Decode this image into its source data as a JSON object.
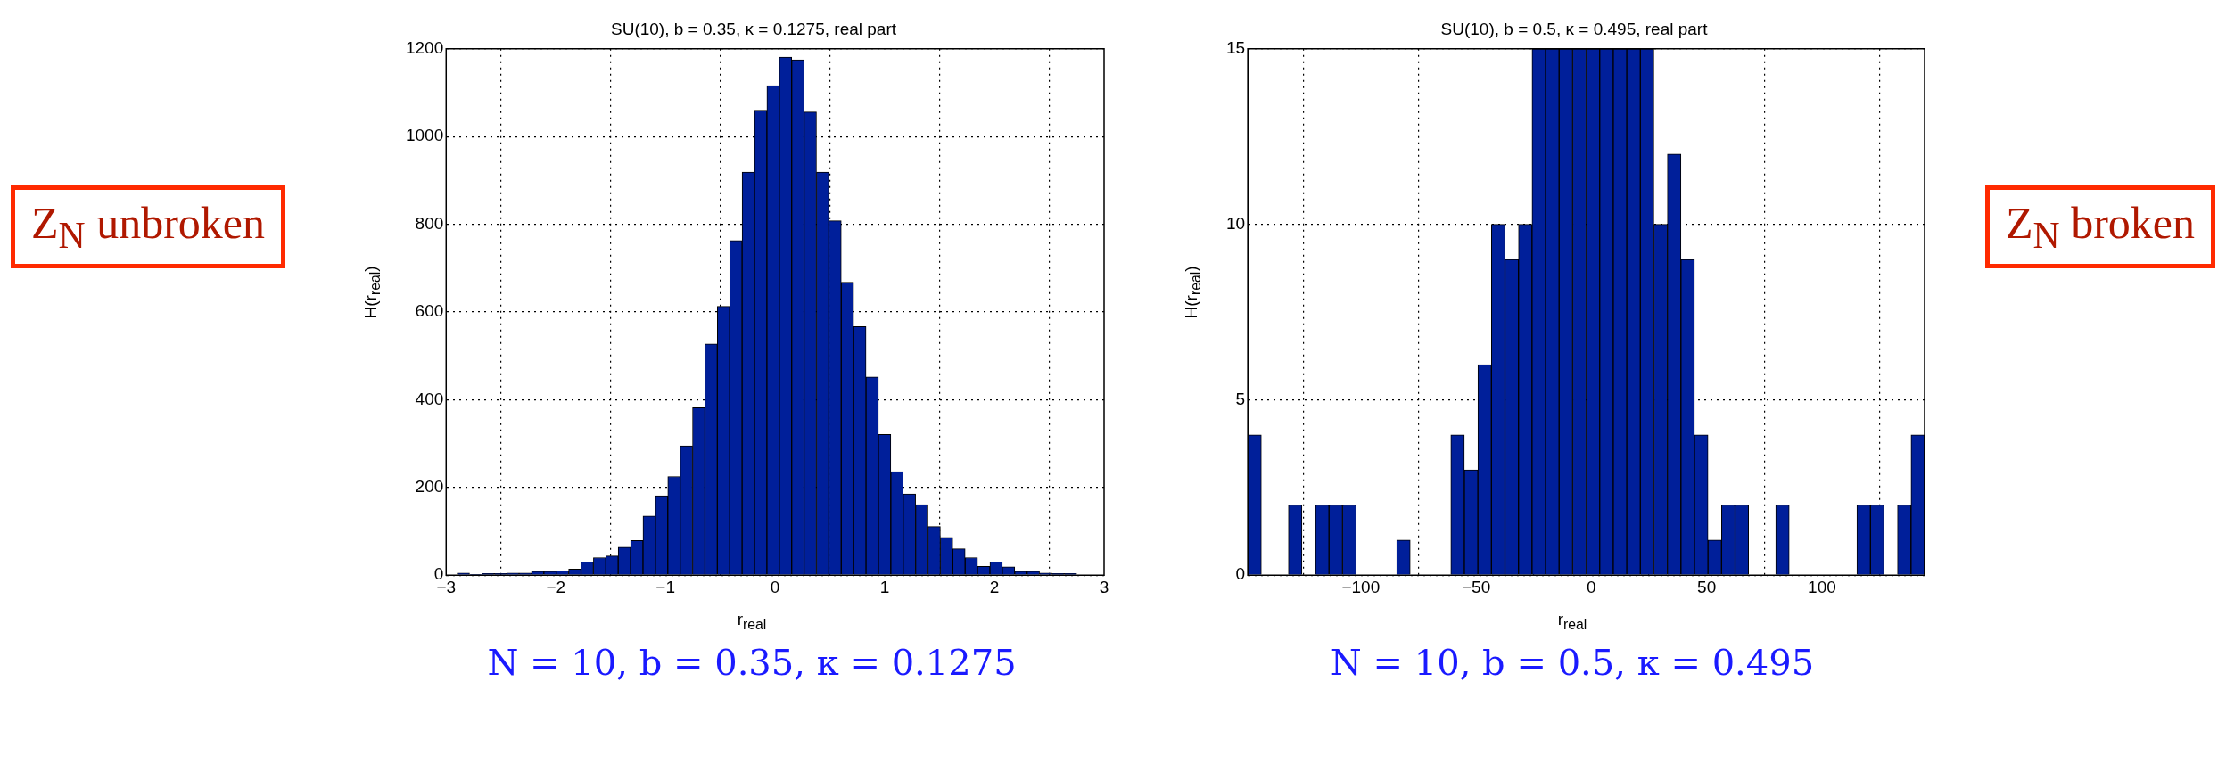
{
  "chart_data": [
    {
      "type": "histogram",
      "title": "SU(10), b = 0.35, κ = 0.1275, real part",
      "xlabel": "r$_{real}$",
      "ylabel": "H(r$_{real}$)",
      "color": "#001f9a",
      "grid": true,
      "bins": [
        -2.9,
        -2.787,
        -2.674,
        -2.561,
        -2.448,
        -2.335,
        -2.222,
        -2.109,
        -1.996,
        -1.883,
        -1.77,
        -1.657,
        -1.544,
        -1.431,
        -1.318,
        -1.205,
        -1.092,
        -0.979,
        -0.866,
        -0.753,
        -0.64,
        -0.527,
        -0.414,
        -0.301,
        -0.188,
        -0.075,
        0.038,
        0.151,
        0.264,
        0.377,
        0.49,
        0.603,
        0.716,
        0.829,
        0.942,
        1.055,
        1.168,
        1.281,
        1.394,
        1.507,
        1.62,
        1.733,
        1.846,
        1.959,
        2.072,
        2.185,
        2.298,
        2.411,
        2.524,
        2.637,
        2.75
      ],
      "values": [
        5,
        2,
        4,
        4,
        5,
        5,
        9,
        9,
        10,
        14,
        30,
        40,
        44,
        64,
        79,
        135,
        181,
        225,
        295,
        382,
        527,
        613,
        763,
        919,
        1060,
        1116,
        1181,
        1175,
        1056,
        919,
        808,
        668,
        567,
        452,
        321,
        236,
        185,
        161,
        111,
        86,
        60,
        40,
        20,
        30,
        19,
        9,
        9,
        5,
        4,
        4
      ],
      "xlim": [
        -3,
        3
      ],
      "xticks": [
        -3,
        -2,
        -1,
        0,
        1,
        2,
        3
      ],
      "ylim": [
        0,
        1200
      ],
      "yticks": [
        0,
        200,
        400,
        600,
        800,
        1000,
        1200
      ],
      "annotations": [
        "Z$_{N}$ unbroken",
        "N = 10,  b = 0.35,  κ = 0.1275"
      ]
    },
    {
      "type": "histogram",
      "title": "SU(10), b = 0.5, κ = 0.495, real part",
      "xlabel": "r$_{real}$",
      "ylabel": "H(r$_{real}$)",
      "color": "#001f9a",
      "grid": true,
      "bins": [
        -149,
        -143.13,
        -137.26,
        -131.39,
        -125.52,
        -119.65,
        -113.78,
        -107.91,
        -102.04,
        -96.17,
        -90.3,
        -84.43,
        -78.56,
        -72.69,
        -66.82,
        -60.95,
        -55.08,
        -49.21,
        -43.34,
        -37.47,
        -31.6,
        -25.73,
        -19.86,
        -13.99,
        -8.12,
        -2.25,
        3.62,
        9.49,
        15.36,
        21.23,
        27.1,
        32.97,
        38.84,
        44.71,
        50.58,
        56.45,
        62.32,
        68.19,
        74.06,
        79.93,
        85.8,
        91.67,
        97.54,
        103.41,
        109.28,
        115.15,
        121.02,
        126.89,
        132.76,
        138.63,
        144.5
      ],
      "values": [
        4,
        0,
        0,
        2,
        0,
        2,
        2,
        2,
        0,
        0,
        0,
        1,
        0,
        0,
        0,
        4,
        3,
        6,
        10,
        9,
        10,
        15,
        15,
        15,
        15,
        15,
        15,
        15,
        15,
        15,
        10,
        12,
        9,
        4,
        1,
        2,
        2,
        0,
        0,
        2,
        0,
        0,
        0,
        0,
        0,
        2,
        2,
        0,
        2,
        4
      ],
      "xlim": [
        -149,
        144.5
      ],
      "xticks": [
        -100,
        -50,
        0,
        50,
        100
      ],
      "ylim": [
        0,
        15
      ],
      "yticks": [
        0,
        5,
        10,
        15
      ],
      "annotations": [
        "Z$_{N}$ broken",
        "N = 10,  b = 0.5,  κ = 0.495"
      ]
    }
  ]
}
